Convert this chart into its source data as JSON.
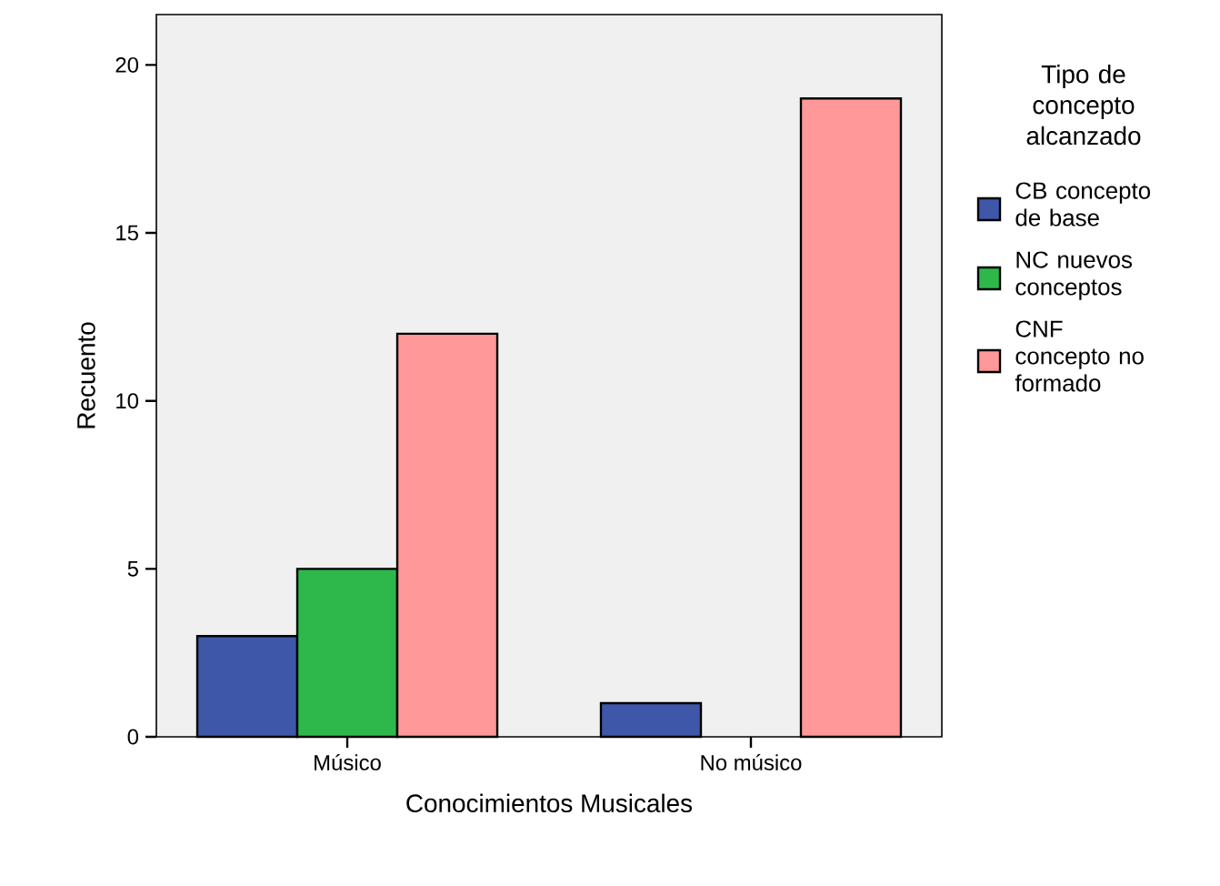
{
  "chart_data": {
    "type": "bar",
    "xlabel": "Conocimientos Musicales",
    "ylabel": "Recuento",
    "legend_title": "Tipo de concepto alcanzado",
    "categories": [
      "Músico",
      "No músico"
    ],
    "series": [
      {
        "name": "CB concepto de base",
        "color": "#3f57a8",
        "values": [
          3,
          1
        ]
      },
      {
        "name": "NC nuevos conceptos",
        "color": "#2fb84a",
        "values": [
          5,
          null
        ]
      },
      {
        "name": "CNF concepto no formado",
        "color": "#ff9898",
        "values": [
          12,
          19
        ]
      }
    ],
    "ylim": [
      0,
      21.5
    ],
    "yticks": [
      0,
      5,
      10,
      15,
      20
    ],
    "legend": "right",
    "grid": false
  }
}
